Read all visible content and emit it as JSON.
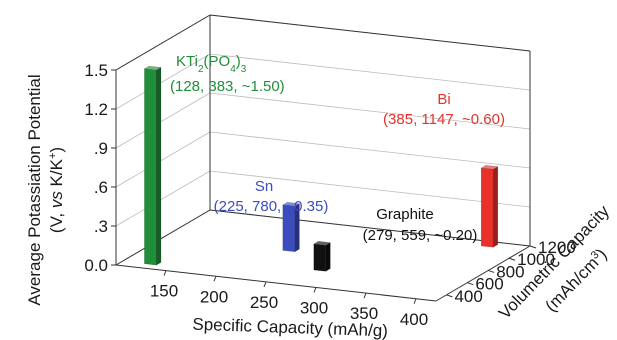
{
  "chart_data": {
    "type": "bar3d",
    "x_axis": {
      "label": "Specific Capacity (mAh/g)",
      "ticks": [
        150,
        200,
        250,
        300,
        350,
        400
      ],
      "range": [
        100,
        420
      ]
    },
    "z_axis": {
      "label_parts": [
        "Volumetric Capacity",
        "(mAh/cm",
        "3",
        ")"
      ],
      "ticks": [
        400,
        600,
        800,
        1000,
        1200
      ],
      "range": [
        300,
        1200
      ]
    },
    "y_axis": {
      "label_line1": "Average Potassiation Potential",
      "label_line2_parts": [
        "(V, ",
        "vs",
        " K/K",
        "+",
        ")"
      ],
      "ticks": [
        "0.0",
        ".3",
        ".6",
        ".9",
        "1.2",
        "1.5"
      ],
      "tick_values": [
        0.0,
        0.3,
        0.6,
        0.9,
        1.2,
        1.5
      ],
      "range": [
        0,
        1.5
      ]
    },
    "points": [
      {
        "name_parts": [
          "KTi",
          "2",
          "(PO",
          "4",
          ")",
          "3"
        ],
        "coords_label": "(128, 383, ~1.50)",
        "specific_capacity": 128,
        "volumetric_capacity": 383,
        "potential": 1.5,
        "color": "#1f8f3a"
      },
      {
        "name": "Sn",
        "coords_label": "(225, 780, ~0.35)",
        "specific_capacity": 225,
        "volumetric_capacity": 780,
        "potential": 0.35,
        "color": "#3b4cc0"
      },
      {
        "name": "Graphite",
        "coords_label": "(279, 559, ~0.20)",
        "specific_capacity": 279,
        "volumetric_capacity": 559,
        "potential": 0.2,
        "color": "#111111"
      },
      {
        "name": "Bi",
        "coords_label": "(385, 1147, ~0.60)",
        "specific_capacity": 385,
        "volumetric_capacity": 1147,
        "potential": 0.6,
        "color": "#e8312a"
      }
    ]
  }
}
